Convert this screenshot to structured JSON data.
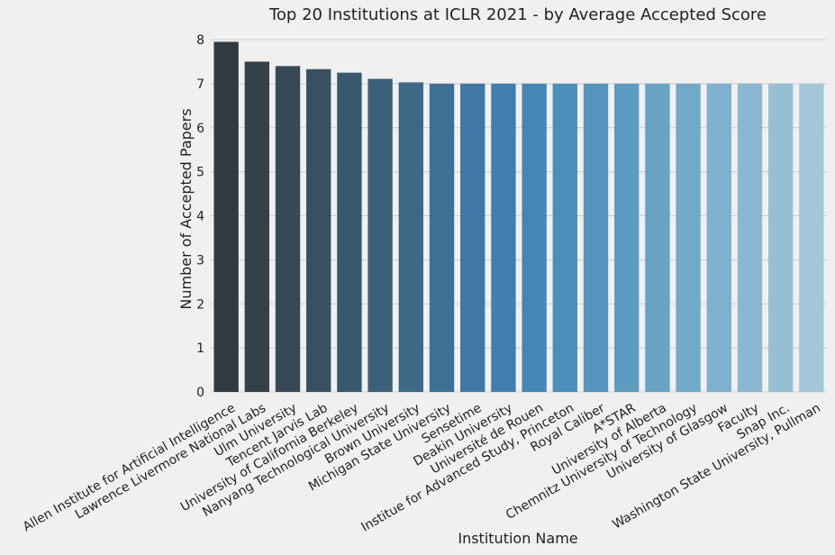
{
  "chart_data": {
    "type": "bar",
    "title": "Top 20 Institutions at ICLR 2021 - by Average Accepted Score",
    "xlabel": "Institution Name",
    "ylabel": "Number of Accepted Papers",
    "ylim": [
      0,
      8
    ],
    "yticks": [
      0,
      1,
      2,
      3,
      4,
      5,
      6,
      7,
      8
    ],
    "grid": "horizontal",
    "categories": [
      "Allen Institute for Artificial Intelligence",
      "Lawrence Livermore National Labs",
      "Ulm University",
      "Tencent Jarvis Lab",
      "University of California Berkeley",
      "Nanyang Technological University",
      "Brown University",
      "Michigan State University",
      "Sensetime",
      "Deakin University",
      "Université de Rouen",
      "Institue for Advanced Study, Princeton",
      "Royal Caliber",
      "A*STAR",
      "University of Alberta",
      "Chemnitz University of Technology",
      "University of Glasgow",
      "Faculty",
      "Snap Inc.",
      "Washington State University, Pullman"
    ],
    "values": [
      7.95,
      7.5,
      7.4,
      7.33,
      7.25,
      7.11,
      7.03,
      7.0,
      7.0,
      7.0,
      7.0,
      7.0,
      7.0,
      7.0,
      7.0,
      7.0,
      7.0,
      7.0,
      7.0,
      7.0
    ],
    "colors": [
      "#323a41",
      "#34404a",
      "#364954",
      "#385160",
      "#3a586b",
      "#3c6078",
      "#3d6886",
      "#3e7095",
      "#3f78a4",
      "#417fb0",
      "#4686b6",
      "#4d8dba",
      "#5594bd",
      "#5e9bc0",
      "#68a2c4",
      "#73a9c8",
      "#7fb0cd",
      "#8bb7d1",
      "#97bed5",
      "#a3c6da"
    ]
  }
}
